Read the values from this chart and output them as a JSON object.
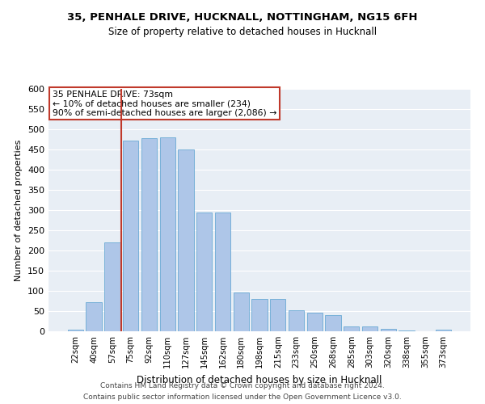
{
  "title1": "35, PENHALE DRIVE, HUCKNALL, NOTTINGHAM, NG15 6FH",
  "title2": "Size of property relative to detached houses in Hucknall",
  "xlabel": "Distribution of detached houses by size in Hucknall",
  "ylabel": "Number of detached properties",
  "annotation_line1": "35 PENHALE DRIVE: 73sqm",
  "annotation_line2": "← 10% of detached houses are smaller (234)",
  "annotation_line3": "90% of semi-detached houses are larger (2,086) →",
  "footer1": "Contains HM Land Registry data © Crown copyright and database right 2024.",
  "footer2": "Contains public sector information licensed under the Open Government Licence v3.0.",
  "bar_labels": [
    "22sqm",
    "40sqm",
    "57sqm",
    "75sqm",
    "92sqm",
    "110sqm",
    "127sqm",
    "145sqm",
    "162sqm",
    "180sqm",
    "198sqm",
    "215sqm",
    "233sqm",
    "250sqm",
    "268sqm",
    "285sqm",
    "303sqm",
    "320sqm",
    "338sqm",
    "355sqm",
    "373sqm"
  ],
  "bar_values": [
    5,
    72,
    220,
    473,
    478,
    480,
    450,
    295,
    295,
    96,
    81,
    81,
    53,
    47,
    41,
    13,
    12,
    7,
    2,
    0,
    4
  ],
  "bar_color": "#aec6e8",
  "bar_edgecolor": "#6aaad4",
  "vline_x": 2.5,
  "vline_color": "#c0392b",
  "annotation_box_color": "#c0392b",
  "background_color": "#e8eef5",
  "ylim": [
    0,
    600
  ],
  "yticks": [
    0,
    50,
    100,
    150,
    200,
    250,
    300,
    350,
    400,
    450,
    500,
    550,
    600
  ]
}
